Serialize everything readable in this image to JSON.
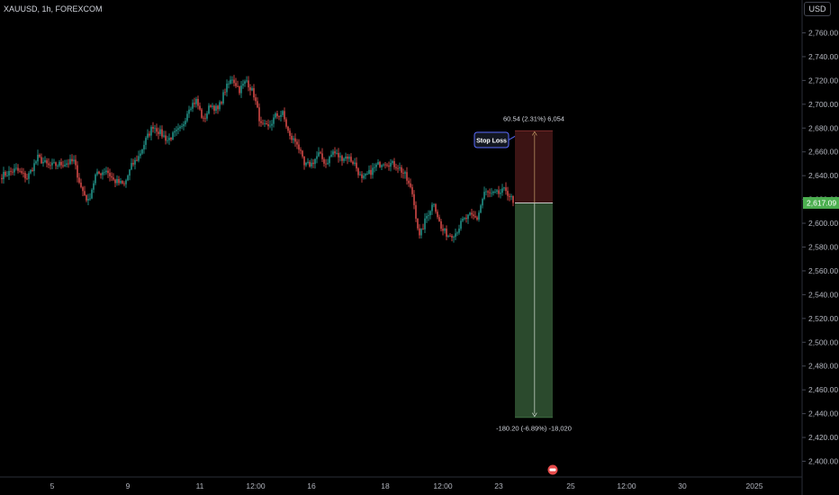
{
  "header": {
    "symbol_line": "XAUUSD, 1h, FOREXCOM",
    "currency": "USD"
  },
  "colors": {
    "background": "#000000",
    "up": "#26a69a",
    "down": "#ef5350",
    "up_zone": "#2b4a2d",
    "down_zone": "#3c1414",
    "price_label": "#4caf50"
  },
  "chart_data": {
    "type": "candlestick",
    "title": "",
    "xlabel": "",
    "ylabel": "",
    "ylim": [
      2390,
      2775
    ],
    "yticks": [
      2400,
      2420,
      2440,
      2460,
      2480,
      2500,
      2520,
      2540,
      2560,
      2580,
      2600,
      2620,
      2640,
      2660,
      2680,
      2700,
      2720,
      2740,
      2760
    ],
    "ytick_labels": [
      "2,400.00",
      "2,420.00",
      "2,440.00",
      "2,460.00",
      "2,480.00",
      "2,500.00",
      "2,520.00",
      "2,540.00",
      "2,560.00",
      "2,580.00",
      "2,600.00",
      "2,620.00",
      "2,640.00",
      "2,660.00",
      "2,680.00",
      "2,700.00",
      "2,720.00",
      "2,740.00",
      "2,760.00"
    ],
    "x_ticks": [
      {
        "label": "5",
        "idx": 28
      },
      {
        "label": "9",
        "idx": 70
      },
      {
        "label": "11",
        "idx": 110
      },
      {
        "label": "12:00",
        "idx": 141
      },
      {
        "label": "16",
        "idx": 172
      },
      {
        "label": "18",
        "idx": 213
      },
      {
        "label": "12:00",
        "idx": 245
      },
      {
        "label": "23",
        "idx": 276
      },
      {
        "label": "25",
        "idx": 316
      },
      {
        "label": "12:00",
        "idx": 347
      },
      {
        "label": "30",
        "idx": 378
      },
      {
        "label": "2025",
        "idx": 418
      }
    ],
    "waypoints": [
      [
        0,
        2640
      ],
      [
        8,
        2645
      ],
      [
        14,
        2638
      ],
      [
        20,
        2655
      ],
      [
        26,
        2648
      ],
      [
        34,
        2650
      ],
      [
        40,
        2652
      ],
      [
        44,
        2630
      ],
      [
        48,
        2618
      ],
      [
        52,
        2640
      ],
      [
        58,
        2645
      ],
      [
        62,
        2636
      ],
      [
        68,
        2632
      ],
      [
        72,
        2648
      ],
      [
        76,
        2656
      ],
      [
        80,
        2670
      ],
      [
        84,
        2682
      ],
      [
        88,
        2676
      ],
      [
        92,
        2670
      ],
      [
        96,
        2675
      ],
      [
        100,
        2680
      ],
      [
        104,
        2698
      ],
      [
        108,
        2703
      ],
      [
        112,
        2686
      ],
      [
        116,
        2700
      ],
      [
        120,
        2695
      ],
      [
        124,
        2712
      ],
      [
        128,
        2722
      ],
      [
        132,
        2712
      ],
      [
        136,
        2720
      ],
      [
        140,
        2708
      ],
      [
        144,
        2682
      ],
      [
        148,
        2680
      ],
      [
        152,
        2690
      ],
      [
        156,
        2692
      ],
      [
        160,
        2672
      ],
      [
        164,
        2668
      ],
      [
        168,
        2648
      ],
      [
        172,
        2650
      ],
      [
        176,
        2658
      ],
      [
        180,
        2650
      ],
      [
        184,
        2660
      ],
      [
        188,
        2655
      ],
      [
        192,
        2656
      ],
      [
        196,
        2650
      ],
      [
        200,
        2636
      ],
      [
        204,
        2642
      ],
      [
        208,
        2648
      ],
      [
        212,
        2652
      ],
      [
        216,
        2650
      ],
      [
        220,
        2648
      ],
      [
        224,
        2640
      ],
      [
        228,
        2625
      ],
      [
        232,
        2588
      ],
      [
        236,
        2606
      ],
      [
        240,
        2618
      ],
      [
        244,
        2595
      ],
      [
        248,
        2590
      ],
      [
        252,
        2592
      ],
      [
        256,
        2602
      ],
      [
        260,
        2606
      ],
      [
        264,
        2604
      ],
      [
        268,
        2626
      ],
      [
        272,
        2624
      ],
      [
        276,
        2625
      ],
      [
        280,
        2628
      ],
      [
        284,
        2618
      ]
    ],
    "last_price": 2617.09,
    "last_price_label": "2,617.09",
    "position": {
      "entry": 2617.09,
      "stop": 2677.63,
      "target": 2436.89,
      "start_idx": 285,
      "end_idx": 306,
      "stop_text": "60.54 (2.31%) 6,054",
      "target_text": "-180.20 (-6.89%) -18,020",
      "stop_label": "Stop Loss"
    }
  }
}
